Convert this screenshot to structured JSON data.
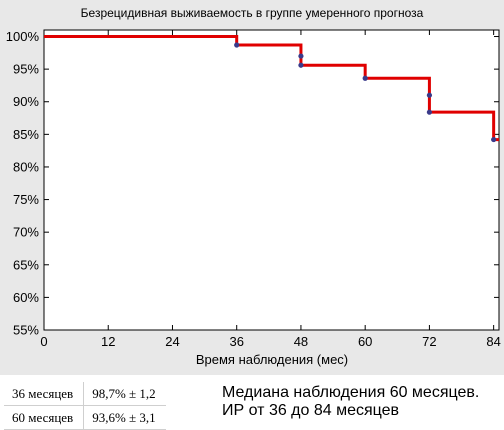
{
  "chart_data": {
    "type": "line",
    "title": "Безрецидивная выживаемость в группе умеренного прогноза",
    "xlabel": "Время наблюдения (мес)",
    "ylabel": "",
    "xlim": [
      0,
      85
    ],
    "ylim": [
      55,
      101
    ],
    "x_ticks": [
      "0",
      "12",
      "24",
      "36",
      "48",
      "60",
      "72",
      "84"
    ],
    "y_ticks": [
      "100%",
      "95%",
      "90%",
      "85%",
      "80%",
      "75%",
      "70%",
      "65%",
      "60%",
      "55%"
    ],
    "grid": false,
    "series": [
      {
        "name": "",
        "color": "#e00000",
        "step_x": [
          0,
          36,
          48,
          60,
          72,
          84,
          85
        ],
        "step_y": [
          100,
          98.7,
          95.6,
          93.6,
          88.4,
          84.2,
          84.2
        ],
        "censored_points": [
          {
            "x": 36,
            "y": 98.7
          },
          {
            "x": 48,
            "y": 97.0
          },
          {
            "x": 48,
            "y": 95.6
          },
          {
            "x": 60,
            "y": 93.6
          },
          {
            "x": 72,
            "y": 91.0
          },
          {
            "x": 72,
            "y": 88.4
          },
          {
            "x": 84,
            "y": 84.2
          }
        ]
      }
    ]
  },
  "stats_table": [
    {
      "period": "36 месяцев",
      "value": "98,7% ± 1,2"
    },
    {
      "period": "60 месяцев",
      "value": "93,6% ± 3,1"
    }
  ],
  "median_note": {
    "line1": "Медиана наблюдения 60 месяцев.",
    "line2": "ИР от 36 до 84 месяцев"
  }
}
